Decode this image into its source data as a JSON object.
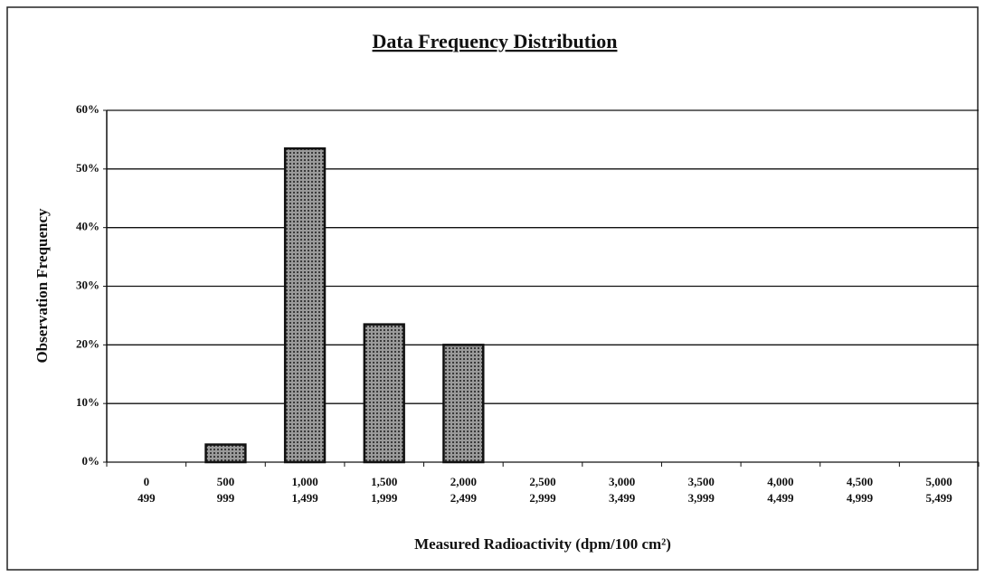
{
  "chart_data": {
    "type": "bar",
    "title": "Data Frequency Distribution",
    "xlabel": "Measured Radioactivity (dpm/100 cm²)",
    "ylabel": "Observation Frequency",
    "categories": [
      [
        "0",
        "499"
      ],
      [
        "500",
        "999"
      ],
      [
        "1,000",
        "1,499"
      ],
      [
        "1,500",
        "1,999"
      ],
      [
        "2,000",
        "2,499"
      ],
      [
        "2,500",
        "2,999"
      ],
      [
        "3,000",
        "3,499"
      ],
      [
        "3,500",
        "3,999"
      ],
      [
        "4,000",
        "4,499"
      ],
      [
        "4,500",
        "4,999"
      ],
      [
        "5,000",
        "5,499"
      ]
    ],
    "values": [
      0,
      3,
      53.5,
      23.5,
      20,
      0,
      0,
      0,
      0,
      0,
      0
    ],
    "color": "#8a8a8a",
    "ylim": [
      0,
      60
    ],
    "yticks": [
      {
        "value": 0,
        "label": "0%"
      },
      {
        "value": 10,
        "label": "10%"
      },
      {
        "value": 20,
        "label": "20%"
      },
      {
        "value": 30,
        "label": "30%"
      },
      {
        "value": 40,
        "label": "40%"
      },
      {
        "value": 50,
        "label": "50%"
      },
      {
        "value": 60,
        "label": "60%"
      }
    ],
    "grid": true
  }
}
